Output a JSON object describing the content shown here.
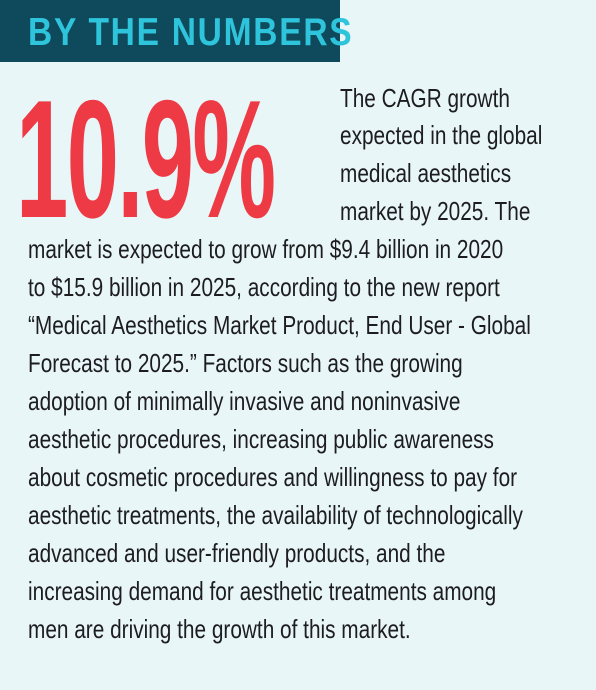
{
  "header": {
    "title": "BY THE NUMBERS"
  },
  "stat": {
    "value": "10.9%"
  },
  "colors": {
    "banner_background": "#0f4a5c",
    "banner_text": "#2ec4dc",
    "stat": "#ee3a45",
    "page_background": "#e9f6f8",
    "body_text": "#1d1d1f"
  },
  "body": {
    "lines": [
      "The CAGR growth",
      "expected in the global",
      "medical aesthetics",
      "market by 2025. The",
      "market is expected to grow from $9.4 billion in 2020",
      "to $15.9 billion in 2025, according to the new report",
      "“Medical Aesthetics Market Product, End User - Global",
      "Forecast to 2025.” Factors such as the growing",
      "adoption of minimally invasive and noninvasive",
      "aesthetic procedures, increasing public awareness",
      "about cosmetic procedures and willingness to pay for",
      "aesthetic treatments, the availability of technologically",
      "advanced and user-friendly products, and the",
      "increasing demand for aesthetic treatments among",
      "men are driving the growth of this market."
    ]
  }
}
